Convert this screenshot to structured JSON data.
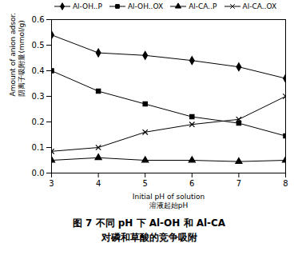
{
  "chart_data": {
    "type": "line",
    "title": "图 7  不同 pH 下 Al-OH 和 Al-CA\n对磷和草酸的竞争吸附",
    "x_label": [
      "Initial pH of solution",
      "溶液起始pH"
    ],
    "y_label": [
      "Amount of anion adsor.",
      "阴离子吸附量(mmol/g)"
    ],
    "x": [
      3,
      4,
      5,
      6,
      7,
      8
    ],
    "series": [
      {
        "name": "Al-OH..P",
        "color": "#000000",
        "marker": "diamond",
        "values": [
          0.54,
          0.47,
          0.46,
          0.44,
          0.415,
          0.37
        ]
      },
      {
        "name": "Al-OH..OX",
        "color": "#000000",
        "marker": "square",
        "values": [
          0.4,
          0.32,
          0.27,
          0.22,
          0.195,
          0.145
        ]
      },
      {
        "name": "Al-CA..P",
        "color": "#000000",
        "marker": "triangle",
        "values": [
          0.05,
          0.06,
          0.05,
          0.05,
          0.045,
          0.05
        ]
      },
      {
        "name": "Al-CA..OX",
        "color": "#000000",
        "marker": "times",
        "values": [
          0.085,
          0.1,
          0.16,
          0.19,
          0.21,
          0.3
        ]
      }
    ],
    "xlim": [
      3,
      8
    ],
    "xticks": [
      3,
      4,
      5,
      6,
      7,
      8
    ],
    "ylim": [
      0,
      0.6
    ],
    "yticks": [
      {
        "value": 0,
        "label": "0.0"
      },
      0.1,
      0.2,
      0.3,
      0.4,
      0.5,
      0.6
    ],
    "legend": "top",
    "grid": false
  }
}
